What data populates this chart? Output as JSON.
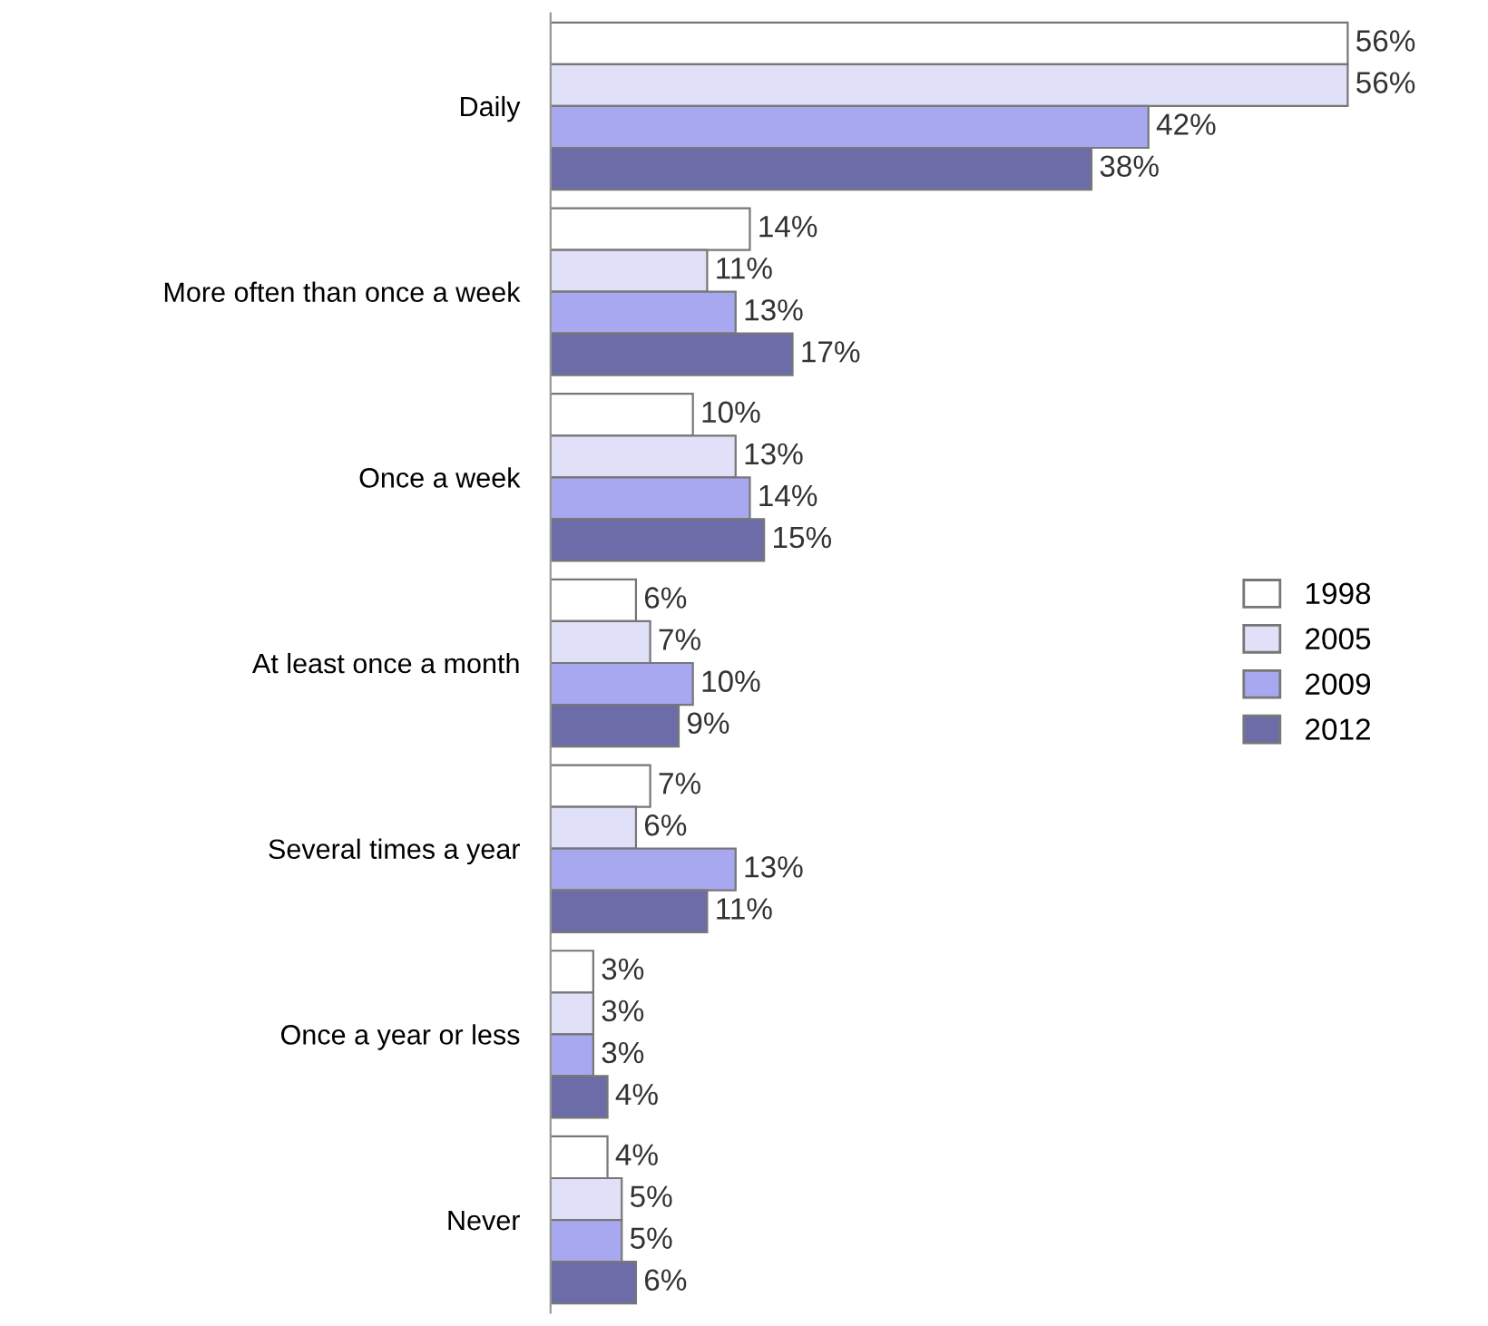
{
  "chart_data": {
    "type": "bar",
    "orientation": "horizontal",
    "categories": [
      "Daily",
      "More often than once a week",
      "Once a week",
      "At least once a month",
      "Several times a year",
      "Once a year or less",
      "Never"
    ],
    "series": [
      {
        "name": "1998",
        "color": "#ffffff",
        "values": [
          56,
          14,
          10,
          6,
          7,
          3,
          4
        ],
        "value_labels": [
          "56%",
          "14%",
          "10%",
          "6%",
          "7%",
          "3%",
          "4%"
        ]
      },
      {
        "name": "2005",
        "color": "#e0e0f8",
        "values": [
          56,
          11,
          13,
          7,
          6,
          3,
          5
        ],
        "value_labels": [
          "56%",
          "11%",
          "13%",
          "7%",
          "6%",
          "3%",
          "5%"
        ]
      },
      {
        "name": "2009",
        "color": "#a8a8f0",
        "values": [
          42,
          13,
          14,
          10,
          13,
          3,
          5
        ],
        "value_labels": [
          "42%",
          "13%",
          "14%",
          "10%",
          "13%",
          "3%",
          "5%"
        ]
      },
      {
        "name": "2012",
        "color": "#6c6ca8",
        "values": [
          38,
          17,
          15,
          9,
          11,
          4,
          6
        ],
        "value_labels": [
          "38%",
          "17%",
          "15%",
          "9%",
          "11%",
          "4%",
          "6%"
        ]
      }
    ],
    "legend": "right",
    "grid": false
  }
}
